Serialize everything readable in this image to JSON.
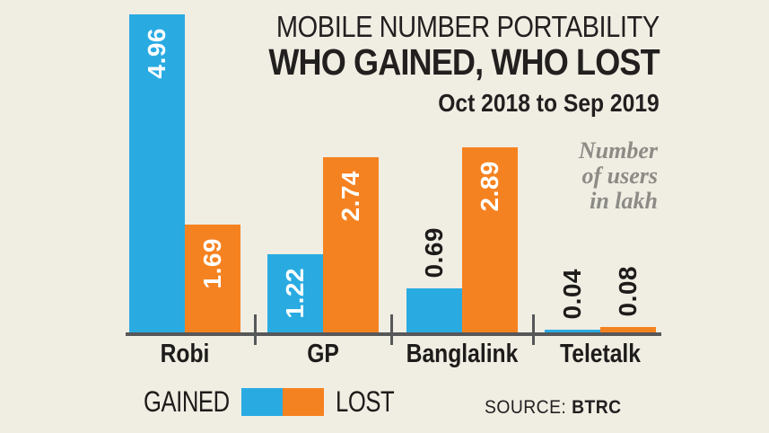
{
  "chart_data": {
    "type": "bar",
    "title": "MOBILE NUMBER PORTABILITY",
    "subtitle": "WHO GAINED, WHO LOST",
    "period": "Oct 2018 to Sep 2019",
    "unit_note": [
      "Number",
      "of users",
      "in lakh"
    ],
    "categories": [
      "Robi",
      "GP",
      "Banglalink",
      "Teletalk"
    ],
    "series": [
      {
        "name": "GAINED",
        "color": "#29abe2",
        "values": [
          4.96,
          1.22,
          0.69,
          0.04
        ]
      },
      {
        "name": "LOST",
        "color": "#f58220",
        "values": [
          1.69,
          2.74,
          2.89,
          0.08
        ]
      }
    ],
    "ylim": [
      0,
      5.2
    ],
    "grid": false,
    "legend_position": "bottom",
    "value_labels_rotated": true
  },
  "source": {
    "label": "SOURCE:",
    "value": "BTRC"
  },
  "colors": {
    "background": "#f0ede3",
    "axis": "#565759",
    "gained": "#29abe2",
    "lost": "#f58220",
    "title_text": "#221f1f",
    "note_text": "#8c8b85",
    "inside_label": "#ffffff",
    "outside_label": "#1d1c1a"
  }
}
